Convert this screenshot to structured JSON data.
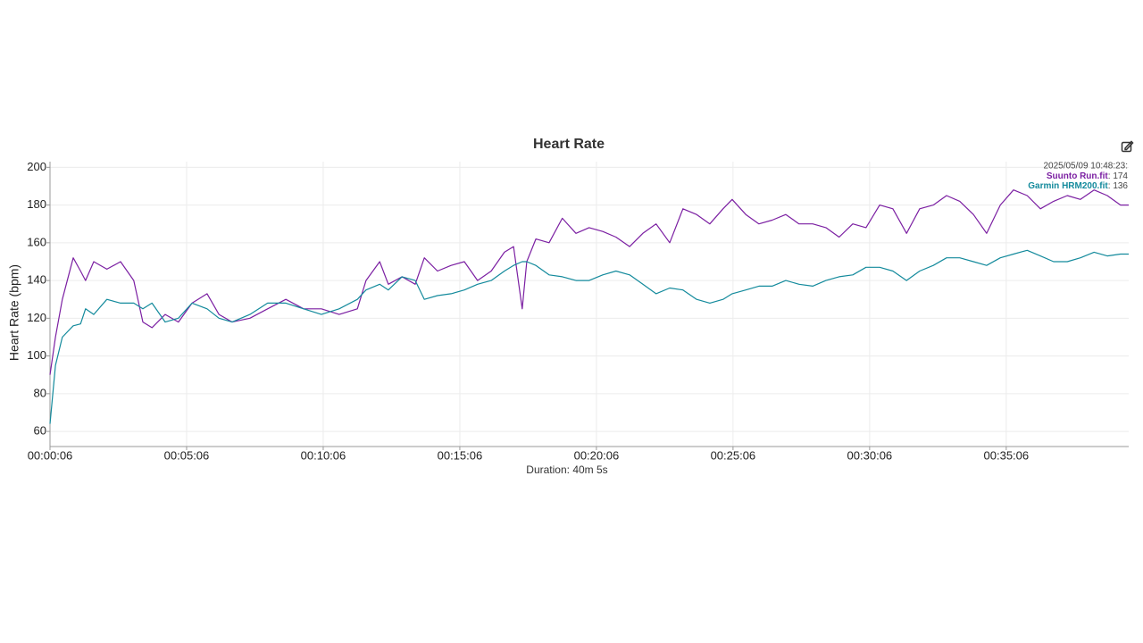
{
  "chart_data": {
    "type": "line",
    "title": "Heart Rate",
    "y_label": "Heart Rate (bpm)",
    "x_label": "Duration: 40m 5s",
    "x": [
      6,
      18,
      33,
      57,
      73,
      84,
      102,
      131,
      161,
      190,
      210,
      230,
      259,
      288,
      318,
      351,
      377,
      406,
      445,
      484,
      524,
      563,
      602,
      641,
      681,
      700,
      730,
      749,
      779,
      808,
      828,
      857,
      887,
      916,
      945,
      975,
      1004,
      1024,
      1043,
      1053,
      1073,
      1102,
      1131,
      1161,
      1190,
      1220,
      1249,
      1279,
      1308,
      1337,
      1367,
      1396,
      1426,
      1455,
      1484,
      1504,
      1534,
      1563,
      1592,
      1622,
      1651,
      1681,
      1710,
      1739,
      1769,
      1798,
      1828,
      1857,
      1887,
      1916,
      1946,
      1975,
      2004,
      2034,
      2063,
      2093,
      2122,
      2152,
      2181,
      2210,
      2240,
      2269,
      2299,
      2328,
      2357,
      2375
    ],
    "series": [
      {
        "name": "Suunto Run.fit",
        "color": "#7b1fa2",
        "values": [
          90,
          110,
          130,
          152,
          145,
          140,
          150,
          146,
          150,
          140,
          118,
          115,
          122,
          118,
          128,
          133,
          122,
          118,
          120,
          125,
          130,
          125,
          125,
          122,
          125,
          140,
          150,
          138,
          142,
          138,
          152,
          145,
          148,
          150,
          140,
          145,
          155,
          158,
          125,
          150,
          162,
          160,
          173,
          165,
          168,
          166,
          163,
          158,
          165,
          170,
          160,
          178,
          175,
          170,
          178,
          183,
          175,
          170,
          172,
          175,
          170,
          170,
          168,
          163,
          170,
          168,
          180,
          178,
          165,
          178,
          180,
          185,
          182,
          175,
          165,
          180,
          188,
          185,
          178,
          182,
          185,
          183,
          188,
          185,
          180,
          180
        ]
      },
      {
        "name": "Garmin HRM200.fit",
        "color": "#138a9c",
        "values": [
          64,
          95,
          110,
          116,
          117,
          125,
          122,
          130,
          128,
          128,
          125,
          128,
          118,
          120,
          128,
          125,
          120,
          118,
          122,
          128,
          128,
          125,
          122,
          125,
          130,
          135,
          138,
          135,
          142,
          140,
          130,
          132,
          133,
          135,
          138,
          140,
          145,
          148,
          150,
          150,
          148,
          143,
          142,
          140,
          140,
          143,
          145,
          143,
          138,
          133,
          136,
          135,
          130,
          128,
          130,
          133,
          135,
          137,
          137,
          140,
          138,
          137,
          140,
          142,
          143,
          147,
          147,
          145,
          140,
          145,
          148,
          152,
          152,
          150,
          148,
          152,
          154,
          156,
          153,
          150,
          150,
          152,
          155,
          153,
          154,
          154
        ]
      }
    ],
    "xlim": [
      6,
      2375
    ],
    "ylim": [
      52,
      203
    ],
    "xticks": [
      {
        "value": 6,
        "label": "00:00:06"
      },
      {
        "value": 306,
        "label": "00:05:06"
      },
      {
        "value": 606,
        "label": "00:10:06"
      },
      {
        "value": 906,
        "label": "00:15:06"
      },
      {
        "value": 1206,
        "label": "00:20:06"
      },
      {
        "value": 1506,
        "label": "00:25:06"
      },
      {
        "value": 1806,
        "label": "00:30:06"
      },
      {
        "value": 2106,
        "label": "00:35:06"
      }
    ],
    "yticks": [
      60,
      80,
      100,
      120,
      140,
      160,
      180,
      200
    ],
    "grid": true,
    "tooltip": {
      "time": "2025/05/09 10:48:23:",
      "separator": ": ",
      "values": [
        174,
        136
      ]
    }
  }
}
